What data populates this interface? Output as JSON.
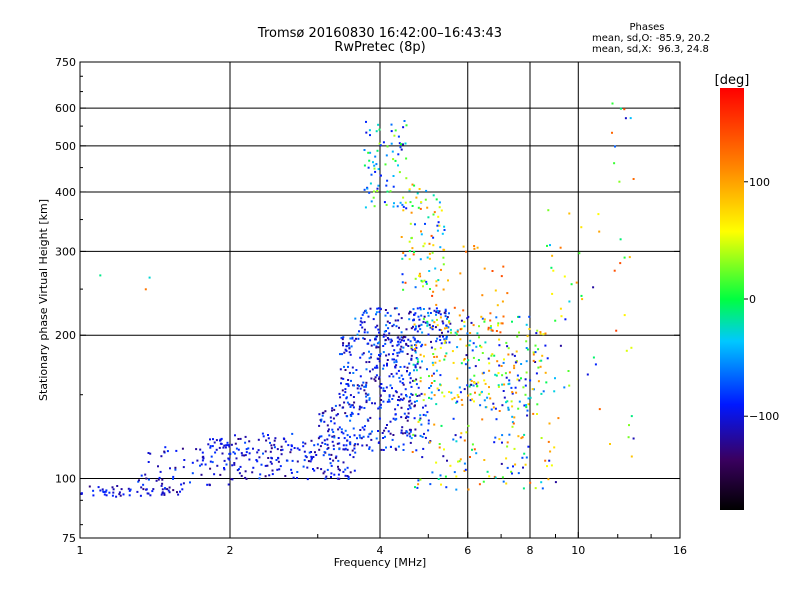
{
  "header": {
    "title_line1": "Tromsø 20160830 16:42:00–16:43:43",
    "title_line2": "RwPretec (8p)",
    "phases_label": "Phases",
    "stat_o": "mean, sd,O: -85.9, 20.2",
    "stat_x": "mean, sd,X:  96.3, 24.8"
  },
  "colors": {
    "axes": "#000000",
    "grid": "#000000",
    "colorbar_top": "#ff0000",
    "colorbar_bottom": "#000000"
  },
  "chart_data": {
    "type": "scatter",
    "xlabel": "Frequency [MHz]",
    "ylabel": "Stationary phase Virtual Height [km]",
    "x_scale": "log2",
    "y_scale": "log",
    "xlim": [
      1,
      16
    ],
    "ylim": [
      75,
      750
    ],
    "x_ticks": [
      1,
      2,
      4,
      6,
      8,
      10,
      16
    ],
    "x_tick_labels": [
      "1",
      "2",
      "4",
      "6",
      "8",
      "10",
      "16"
    ],
    "y_ticks": [
      75,
      100,
      200,
      300,
      400,
      500,
      600,
      750
    ],
    "y_tick_labels": [
      "75",
      "100",
      "200",
      "300",
      "400",
      "500",
      "600",
      "750"
    ],
    "grid": true,
    "colorbar": {
      "label": "[deg]",
      "range": [
        -180,
        180
      ],
      "ticks": [
        100,
        0,
        -100
      ],
      "tick_labels": [
        "100",
        "0",
        "−100"
      ]
    },
    "clusters": [
      {
        "freq": [
          1.0,
          1.6
        ],
        "height": [
          92,
          97
        ],
        "phase": [
          -130,
          -80
        ],
        "count": 60
      },
      {
        "freq": [
          1.3,
          2.0
        ],
        "height": [
          97,
          118
        ],
        "phase": [
          -130,
          -70
        ],
        "count": 70
      },
      {
        "freq": [
          2.0,
          3.6
        ],
        "height": [
          100,
          125
        ],
        "phase": [
          -130,
          -70
        ],
        "count": 200
      },
      {
        "freq": [
          1.8,
          2.0
        ],
        "height": [
          115,
          122
        ],
        "phase": [
          -110,
          -80
        ],
        "count": 25
      },
      {
        "freq": [
          3.0,
          5.0
        ],
        "height": [
          115,
          145
        ],
        "phase": [
          -130,
          -60
        ],
        "count": 180
      },
      {
        "freq": [
          3.3,
          4.8
        ],
        "height": [
          145,
          200
        ],
        "phase": [
          -130,
          -60
        ],
        "count": 250
      },
      {
        "freq": [
          3.5,
          5.5
        ],
        "height": [
          190,
          230
        ],
        "phase": [
          -130,
          -50
        ],
        "count": 150
      },
      {
        "freq": [
          4.6,
          8.5
        ],
        "height": [
          140,
          220
        ],
        "phase": [
          -120,
          120
        ],
        "count": 300
      },
      {
        "freq": [
          4.6,
          9.0
        ],
        "height": [
          95,
          140
        ],
        "phase": [
          -120,
          140
        ],
        "count": 120
      },
      {
        "freq": [
          3.7,
          4.5
        ],
        "height": [
          370,
          570
        ],
        "phase": [
          -110,
          40
        ],
        "count": 80
      },
      {
        "freq": [
          4.4,
          5.4
        ],
        "height": [
          250,
          420
        ],
        "phase": [
          -100,
          140
        ],
        "count": 90
      },
      {
        "freq": [
          5.0,
          7.2
        ],
        "height": [
          200,
          320
        ],
        "phase": [
          80,
          150
        ],
        "count": 40
      },
      {
        "freq": [
          8.5,
          11.0
        ],
        "height": [
          120,
          380
        ],
        "phase": [
          -120,
          130
        ],
        "count": 40
      },
      {
        "freq": [
          11.5,
          13.0
        ],
        "height": [
          110,
          640
        ],
        "phase": [
          -120,
          160
        ],
        "count": 25
      },
      {
        "freq": [
          1.0,
          1.4
        ],
        "height": [
          250,
          280
        ],
        "phase": [
          -100,
          120
        ],
        "count": 3
      }
    ]
  }
}
